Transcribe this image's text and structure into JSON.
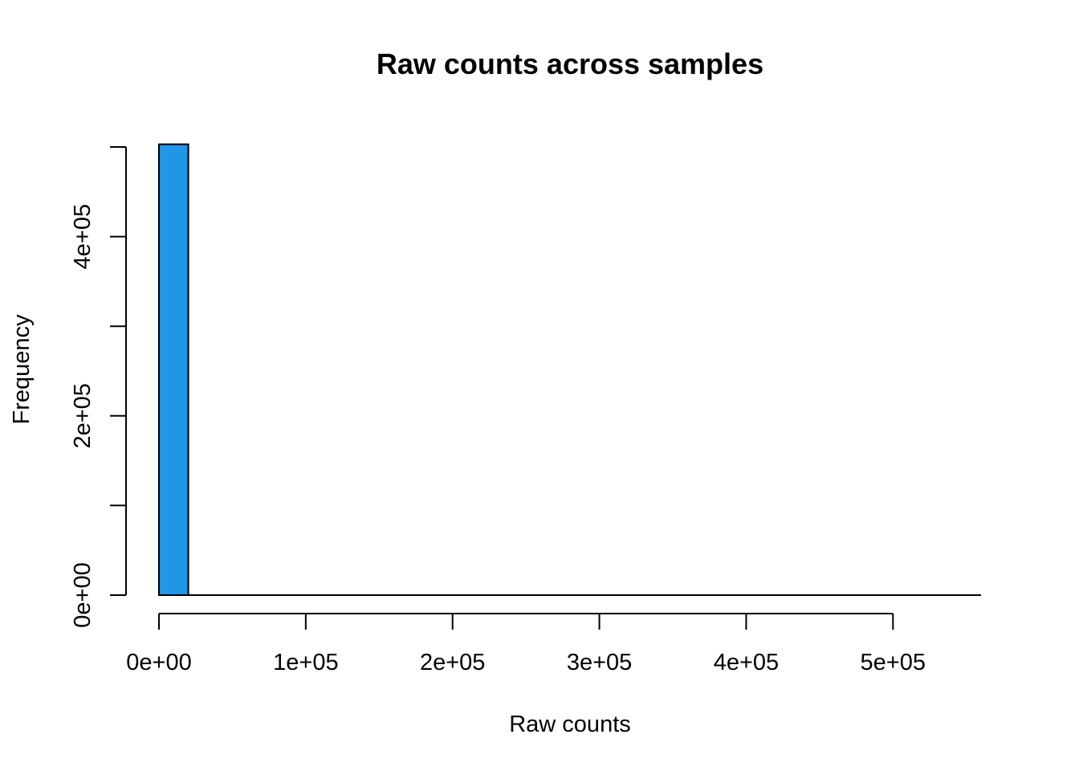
{
  "chart_data": {
    "type": "bar",
    "title": "Raw counts across samples",
    "xlabel": "Raw counts",
    "ylabel": "Frequency",
    "xlim": [
      0,
      560000
    ],
    "ylim": [
      0,
      500000
    ],
    "x_ticks": [
      0,
      100000,
      200000,
      300000,
      400000,
      500000
    ],
    "x_tick_labels": [
      "0e+00",
      "1e+05",
      "2e+05",
      "3e+05",
      "4e+05",
      "5e+05"
    ],
    "y_ticks": [
      0,
      100000,
      200000,
      300000,
      400000,
      500000
    ],
    "y_tick_labels": [
      "0e+00",
      "",
      "2e+05",
      "",
      "4e+05",
      ""
    ],
    "bin_width": 20000,
    "bins": [
      {
        "x0": 0,
        "x1": 20000,
        "count": 503000
      },
      {
        "x0": 20000,
        "x1": 560000,
        "count": 0
      }
    ],
    "grid": false,
    "bar_color": "#2196E8"
  }
}
